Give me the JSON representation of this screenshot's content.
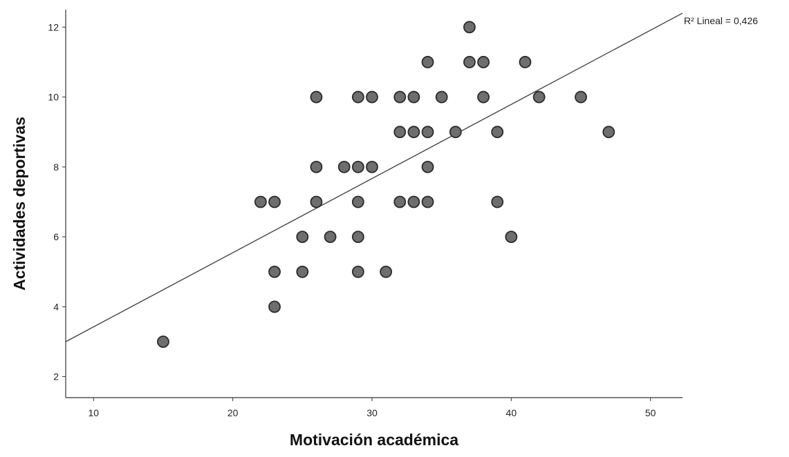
{
  "chart_data": {
    "type": "scatter",
    "title": "",
    "xlabel": "Motivación académica",
    "ylabel": "Actividades deportivas",
    "xlim": [
      8,
      52.3
    ],
    "ylim": [
      1.4,
      12.5
    ],
    "x_ticks": [
      10,
      20,
      30,
      40,
      50
    ],
    "y_ticks": [
      2,
      4,
      6,
      8,
      10,
      12
    ],
    "x_tick_labels": [
      "10",
      "20",
      "30",
      "40",
      "50"
    ],
    "y_tick_labels": [
      "2",
      "4",
      "6",
      "8",
      "10",
      "12"
    ],
    "grid": false,
    "legend": "none",
    "marker_color": "#6e6e6e",
    "marker_edge_color": "#2a2a2a",
    "fit_line": {
      "label": "R² Lineal = 0,426",
      "x": [
        8,
        52.3
      ],
      "y": [
        3.0,
        12.4
      ]
    },
    "points": {
      "x": [
        15,
        22,
        23,
        23,
        23,
        25,
        25,
        26,
        26,
        26,
        27,
        28,
        29,
        29,
        29,
        29,
        29,
        30,
        30,
        31,
        32,
        32,
        32,
        33,
        33,
        33,
        34,
        34,
        34,
        34,
        35,
        36,
        37,
        37,
        38,
        38,
        39,
        39,
        40,
        41,
        42,
        45,
        47
      ],
      "y": [
        3,
        7,
        7,
        5,
        4,
        6,
        5,
        10,
        8,
        7,
        6,
        8,
        10,
        8,
        7,
        6,
        5,
        10,
        8,
        5,
        10,
        9,
        7,
        10,
        9,
        7,
        11,
        9,
        8,
        7,
        10,
        9,
        12,
        11,
        11,
        10,
        9,
        7,
        6,
        11,
        10,
        10,
        9
      ]
    }
  }
}
